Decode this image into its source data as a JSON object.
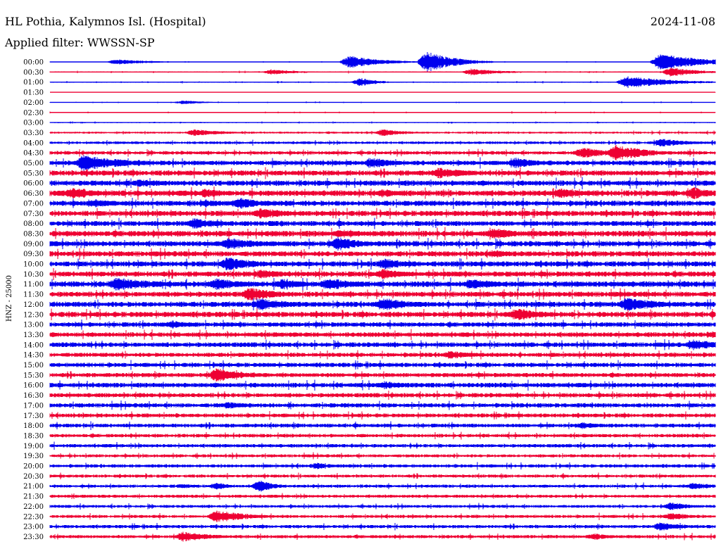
{
  "header": {
    "station_title": "HL Pothia, Kalymnos Isl. (Hospital)",
    "date": "2024-11-08",
    "filter_label": "Applied filter: WWSSN-SP"
  },
  "chart_data": {
    "type": "line",
    "title": "HL Pothia, Kalymnos Isl. (Hospital)",
    "ylabel": "HNZ - 25000",
    "trace_colors": [
      "#0000ee",
      "#ee0033"
    ],
    "row_labels": [
      "00:00",
      "00:30",
      "01:00",
      "01:30",
      "02:00",
      "02:30",
      "03:00",
      "03:30",
      "04:00",
      "04:30",
      "05:00",
      "05:30",
      "06:00",
      "06:30",
      "07:00",
      "07:30",
      "08:00",
      "08:30",
      "09:00",
      "09:30",
      "10:00",
      "10:30",
      "11:00",
      "11:30",
      "12:00",
      "12:30",
      "13:00",
      "13:30",
      "14:00",
      "14:30",
      "15:00",
      "15:30",
      "16:00",
      "16:30",
      "17:00",
      "17:30",
      "18:00",
      "18:30",
      "19:00",
      "19:30",
      "20:00",
      "20:30",
      "21:00",
      "21:30",
      "22:00",
      "22:30",
      "23:00",
      "23:30"
    ],
    "noise_level": [
      0.3,
      0.6,
      0.5,
      0.2,
      0.4,
      0.5,
      0.5,
      1.0,
      1.3,
      1.7,
      2.3,
      2.6,
      2.6,
      2.8,
      2.6,
      2.6,
      2.5,
      2.8,
      2.6,
      2.6,
      2.6,
      2.6,
      2.8,
      2.6,
      2.6,
      2.6,
      2.3,
      2.3,
      2.3,
      2.1,
      2.1,
      2.1,
      2.3,
      2.1,
      2.1,
      1.9,
      1.9,
      1.7,
      1.7,
      1.5,
      1.6,
      1.5,
      1.5,
      1.5,
      1.4,
      1.5,
      1.6,
      1.6
    ],
    "events": [
      {
        "row": "00:00",
        "minute": 3.0,
        "amplitude": 4,
        "duration": 1.5
      },
      {
        "row": "00:00",
        "minute": 13.5,
        "amplitude": 9,
        "duration": 1.5
      },
      {
        "row": "00:00",
        "minute": 17.0,
        "amplitude": 16,
        "duration": 1.2
      },
      {
        "row": "00:00",
        "minute": 27.5,
        "amplitude": 12,
        "duration": 2.0
      },
      {
        "row": "00:30",
        "minute": 10.0,
        "amplitude": 4,
        "duration": 1.2
      },
      {
        "row": "00:30",
        "minute": 19.0,
        "amplitude": 5,
        "duration": 1.5
      },
      {
        "row": "00:30",
        "minute": 28.0,
        "amplitude": 7,
        "duration": 1.2
      },
      {
        "row": "01:00",
        "minute": 14.0,
        "amplitude": 6,
        "duration": 0.8
      },
      {
        "row": "01:00",
        "minute": 26.0,
        "amplitude": 9,
        "duration": 2.0
      },
      {
        "row": "02:00",
        "minute": 6.0,
        "amplitude": 3,
        "duration": 1.0
      },
      {
        "row": "03:30",
        "minute": 6.5,
        "amplitude": 5,
        "duration": 1.5
      },
      {
        "row": "03:30",
        "minute": 15.0,
        "amplitude": 5,
        "duration": 1.2
      },
      {
        "row": "04:00",
        "minute": 27.5,
        "amplitude": 6,
        "duration": 1.5
      },
      {
        "row": "04:30",
        "minute": 24.0,
        "amplitude": 8,
        "duration": 1.5
      },
      {
        "row": "04:30",
        "minute": 25.5,
        "amplitude": 12,
        "duration": 1.5
      },
      {
        "row": "05:00",
        "minute": 1.5,
        "amplitude": 12,
        "duration": 2.0
      },
      {
        "row": "05:00",
        "minute": 14.5,
        "amplitude": 8,
        "duration": 1.2
      },
      {
        "row": "05:00",
        "minute": 21.0,
        "amplitude": 8,
        "duration": 1.2
      },
      {
        "row": "05:30",
        "minute": 17.5,
        "amplitude": 8,
        "duration": 1.5
      },
      {
        "row": "06:00",
        "minute": 4.0,
        "amplitude": 6,
        "duration": 1.5
      },
      {
        "row": "06:30",
        "minute": 1.0,
        "amplitude": 9,
        "duration": 1.5
      },
      {
        "row": "06:30",
        "minute": 7.0,
        "amplitude": 7,
        "duration": 1.0
      },
      {
        "row": "06:30",
        "minute": 15.0,
        "amplitude": 6,
        "duration": 1.0
      },
      {
        "row": "06:30",
        "minute": 23.0,
        "amplitude": 7,
        "duration": 1.5
      },
      {
        "row": "06:30",
        "minute": 29.0,
        "amplitude": 9,
        "duration": 1.0
      },
      {
        "row": "07:00",
        "minute": 2.0,
        "amplitude": 6,
        "duration": 1.5
      },
      {
        "row": "07:00",
        "minute": 7.0,
        "amplitude": 6,
        "duration": 1.0
      },
      {
        "row": "07:00",
        "minute": 8.5,
        "amplitude": 9,
        "duration": 1.2
      },
      {
        "row": "07:30",
        "minute": 9.5,
        "amplitude": 8,
        "duration": 1.5
      },
      {
        "row": "08:00",
        "minute": 6.5,
        "amplitude": 8,
        "duration": 1.5
      },
      {
        "row": "08:30",
        "minute": 13.0,
        "amplitude": 7,
        "duration": 1.2
      },
      {
        "row": "08:30",
        "minute": 20.0,
        "amplitude": 9,
        "duration": 1.2
      },
      {
        "row": "09:00",
        "minute": 8.0,
        "amplitude": 8,
        "duration": 2.0
      },
      {
        "row": "09:00",
        "minute": 13.0,
        "amplitude": 10,
        "duration": 1.2
      },
      {
        "row": "09:30",
        "minute": 20.0,
        "amplitude": 6,
        "duration": 1.0
      },
      {
        "row": "10:00",
        "minute": 8.0,
        "amplitude": 10,
        "duration": 1.5
      },
      {
        "row": "10:00",
        "minute": 15.0,
        "amplitude": 8,
        "duration": 1.5
      },
      {
        "row": "10:30",
        "minute": 9.5,
        "amplitude": 7,
        "duration": 1.5
      },
      {
        "row": "10:30",
        "minute": 15.0,
        "amplitude": 8,
        "duration": 1.2
      },
      {
        "row": "11:00",
        "minute": 3.0,
        "amplitude": 10,
        "duration": 2.0
      },
      {
        "row": "11:00",
        "minute": 7.5,
        "amplitude": 9,
        "duration": 1.5
      },
      {
        "row": "11:00",
        "minute": 10.5,
        "amplitude": 8,
        "duration": 1.0
      },
      {
        "row": "11:00",
        "minute": 12.5,
        "amplitude": 9,
        "duration": 1.5
      },
      {
        "row": "11:00",
        "minute": 19.0,
        "amplitude": 8,
        "duration": 1.5
      },
      {
        "row": "11:30",
        "minute": 9.0,
        "amplitude": 10,
        "duration": 1.5
      },
      {
        "row": "12:00",
        "minute": 9.5,
        "amplitude": 9,
        "duration": 1.5
      },
      {
        "row": "12:00",
        "minute": 15.0,
        "amplitude": 10,
        "duration": 1.5
      },
      {
        "row": "12:00",
        "minute": 26.0,
        "amplitude": 10,
        "duration": 1.8
      },
      {
        "row": "12:30",
        "minute": 21.0,
        "amplitude": 9,
        "duration": 1.5
      },
      {
        "row": "13:00",
        "minute": 5.5,
        "amplitude": 6,
        "duration": 1.2
      },
      {
        "row": "13:30",
        "minute": 30.0,
        "amplitude": 6,
        "duration": 1.0
      },
      {
        "row": "14:00",
        "minute": 29.0,
        "amplitude": 8,
        "duration": 1.5
      },
      {
        "row": "14:30",
        "minute": 18.0,
        "amplitude": 6,
        "duration": 1.5
      },
      {
        "row": "15:30",
        "minute": 7.5,
        "amplitude": 10,
        "duration": 1.5
      },
      {
        "row": "16:00",
        "minute": 15.0,
        "amplitude": 6,
        "duration": 1.5
      },
      {
        "row": "17:00",
        "minute": 8.0,
        "amplitude": 5,
        "duration": 1.5
      },
      {
        "row": "18:00",
        "minute": 24.0,
        "amplitude": 5,
        "duration": 1.2
      },
      {
        "row": "20:00",
        "minute": 12.0,
        "amplitude": 5,
        "duration": 1.0
      },
      {
        "row": "21:00",
        "minute": 6.0,
        "amplitude": 4,
        "duration": 0.6
      },
      {
        "row": "21:00",
        "minute": 7.5,
        "amplitude": 6,
        "duration": 0.6
      },
      {
        "row": "21:00",
        "minute": 9.5,
        "amplitude": 10,
        "duration": 0.6
      },
      {
        "row": "21:00",
        "minute": 29.0,
        "amplitude": 5,
        "duration": 1.0
      },
      {
        "row": "22:00",
        "minute": 28.0,
        "amplitude": 6,
        "duration": 1.0
      },
      {
        "row": "22:30",
        "minute": 7.5,
        "amplitude": 9,
        "duration": 1.5
      },
      {
        "row": "22:30",
        "minute": 28.0,
        "amplitude": 6,
        "duration": 1.0
      },
      {
        "row": "23:00",
        "minute": 27.5,
        "amplitude": 6,
        "duration": 1.5
      },
      {
        "row": "23:30",
        "minute": 6.0,
        "amplitude": 7,
        "duration": 1.5
      },
      {
        "row": "23:30",
        "minute": 24.5,
        "amplitude": 5,
        "duration": 1.0
      }
    ]
  }
}
